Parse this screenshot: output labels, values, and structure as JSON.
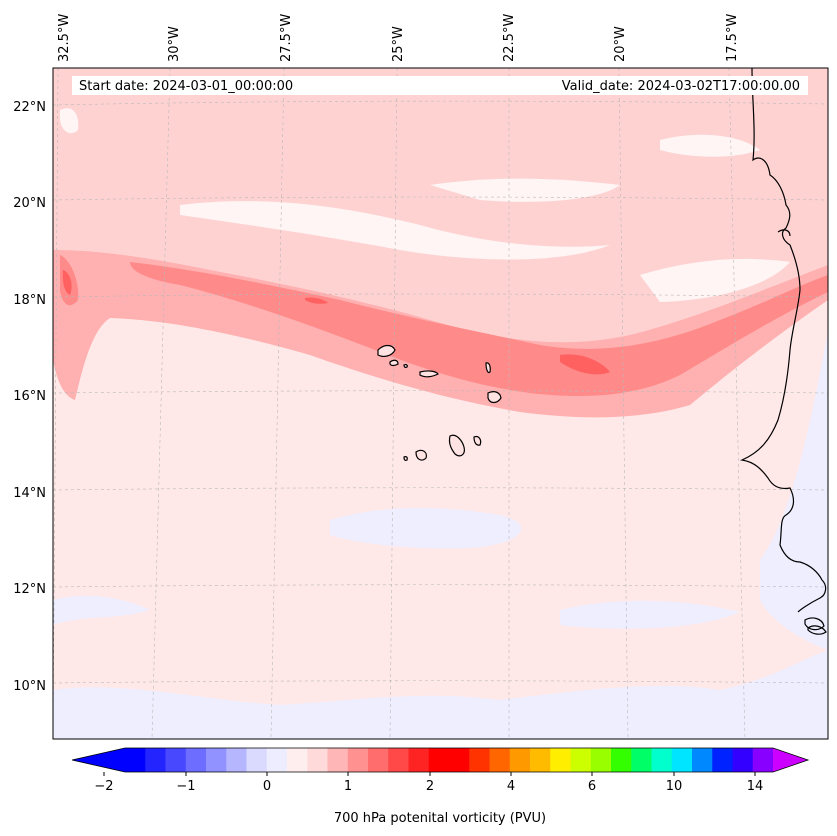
{
  "map": {
    "start_date": "Start date: 2024-03-01_00:00:00",
    "valid_date": "Valid_date: 2024-03-02T17:00:00.00",
    "lon_labels": [
      "32.5°W",
      "30°W",
      "27.5°W",
      "25°W",
      "22.5°W",
      "20°W",
      "17.5°W"
    ],
    "lat_labels": [
      "22°N",
      "20°N",
      "18°N",
      "16°N",
      "14°N",
      "12°N",
      "10°N"
    ],
    "features": [
      "Cape Verde islands",
      "West African coastline"
    ],
    "field": "700 hPa potenital vorticity",
    "colors": {
      "background": "#ffe8e8",
      "band_light": "#ffd2d2",
      "band_mid": "#ffb0b0",
      "band_strong": "#ff8a8a",
      "band_peak": "#ff6060",
      "near_zero": "#eeeeff",
      "white_patch": "#fff5f5"
    }
  },
  "colorbar": {
    "label": "700 hPa potenital vorticity (PVU)",
    "ticks": [
      "−2",
      "−1",
      "0",
      "1",
      "2",
      "4",
      "6",
      "10",
      "14"
    ],
    "colors": [
      "#0000ff",
      "#2424ff",
      "#4848ff",
      "#6d6dff",
      "#9191ff",
      "#b6b6ff",
      "#dadaff",
      "#ededff",
      "#ffeeee",
      "#ffdada",
      "#ffb6b6",
      "#ff9191",
      "#ff6d6d",
      "#ff4848",
      "#ff2424",
      "#ff0000",
      "#ff0000",
      "#ff3300",
      "#ff6600",
      "#ff9900",
      "#ffbb00",
      "#ffee00",
      "#ccff00",
      "#99ff00",
      "#33ff00",
      "#00ff66",
      "#00ffcc",
      "#00e5ff",
      "#0088ff",
      "#0022ff",
      "#3300ff",
      "#8800ff"
    ],
    "under_color": "#0000ff",
    "over_color": "#cc00ff"
  }
}
